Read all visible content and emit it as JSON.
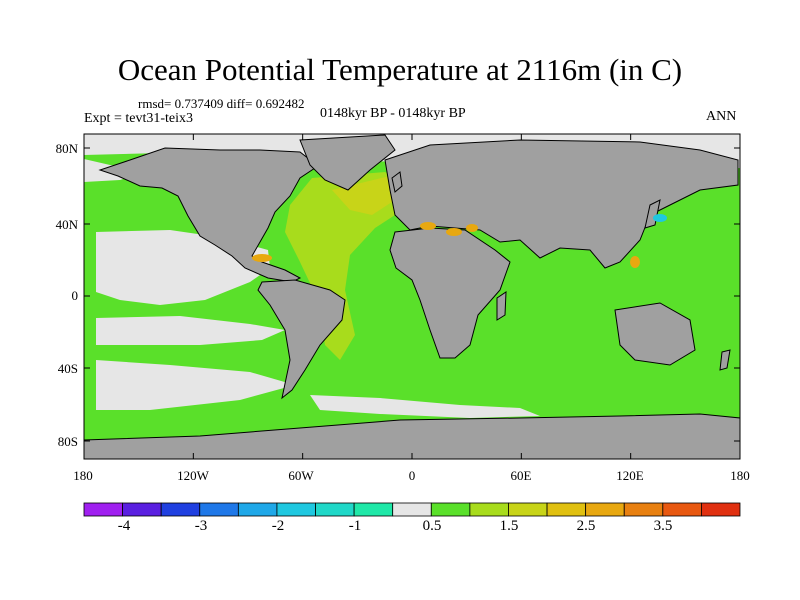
{
  "title": "Ocean Potential Temperature at 2116m (in C)",
  "stats": "rmsd= 0.737409 diff= 0.692482",
  "expt": "Expt = tevt31-teix3",
  "period": "0148kyr BP - 0148kyr BP",
  "season": "ANN",
  "lat_labels": [
    "80N",
    "40N",
    "0",
    "40S",
    "80S"
  ],
  "lon_labels": [
    "180",
    "120W",
    "60W",
    "0",
    "60E",
    "120E",
    "180"
  ],
  "colorbar": {
    "colors": [
      "#a020f0",
      "#5a1fe0",
      "#2040e0",
      "#1f78e8",
      "#1fa8e8",
      "#1fc8e0",
      "#20d8c8",
      "#1fe8a8",
      "#e6e6e6",
      "#5ae02a",
      "#a8dc1c",
      "#c8d418",
      "#e0c010",
      "#e8a810",
      "#e88010",
      "#e85810",
      "#e03010"
    ],
    "labels": [
      "-4",
      "-3",
      "-2",
      "-1",
      "0.5",
      "1.5",
      "2.5",
      "3.5"
    ]
  },
  "map_colors": {
    "land": "#a0a0a0",
    "ocean_base": "#5ae02a",
    "near_zero": "#e6e6e6",
    "warm_1": "#a8dc1c",
    "warm_2": "#c8d418",
    "hot": "#e8a810",
    "cold": "#1fc8e0"
  }
}
